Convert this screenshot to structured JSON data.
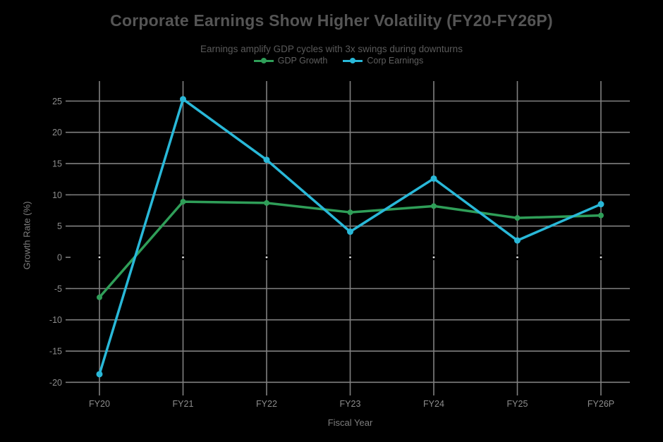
{
  "title": "Corporate Earnings Show Higher Volatility (FY20-FY26P)",
  "subtitle": "Earnings amplify GDP cycles with 3x swings during downturns",
  "chart_data": {
    "type": "line",
    "title": "Corporate Earnings Show Higher Volatility (FY20-FY26P)",
    "subtitle": "Earnings amplify GDP cycles with 3x swings during downturns",
    "categories": [
      "FY20",
      "FY21",
      "FY22",
      "FY23",
      "FY24",
      "FY25",
      "FY26P"
    ],
    "series": [
      {
        "name": "GDP Growth",
        "color": "#2f9e58",
        "marker_radius": 4,
        "values": [
          -6.4,
          8.9,
          8.7,
          7.2,
          8.2,
          6.3,
          6.7
        ]
      },
      {
        "name": "Corp Earnings",
        "color": "#29b8d8",
        "marker_radius": 4.5,
        "values": [
          -18.7,
          25.3,
          15.6,
          4.1,
          12.6,
          2.7,
          8.5
        ]
      }
    ],
    "xlabel": "Fiscal Year",
    "ylabel": "Growth Rate (%)",
    "yticks": [
      -20,
      -15,
      -10,
      -5,
      0,
      5,
      10,
      15,
      20,
      25
    ],
    "ylim": [
      -21.2,
      28.2
    ],
    "grid": true,
    "zero_gridline_hidden": true,
    "legend_position": "top-center",
    "colors": {
      "background": "#000000",
      "grid": "#808080",
      "tick_label": "#8c8c8c",
      "axis_title": "#7d7d7d",
      "title": "#555555",
      "subtitle": "#5a5a5a",
      "legend_text": "#5f5f5f",
      "zero_intersection_dot": "#e8e8e8"
    }
  }
}
